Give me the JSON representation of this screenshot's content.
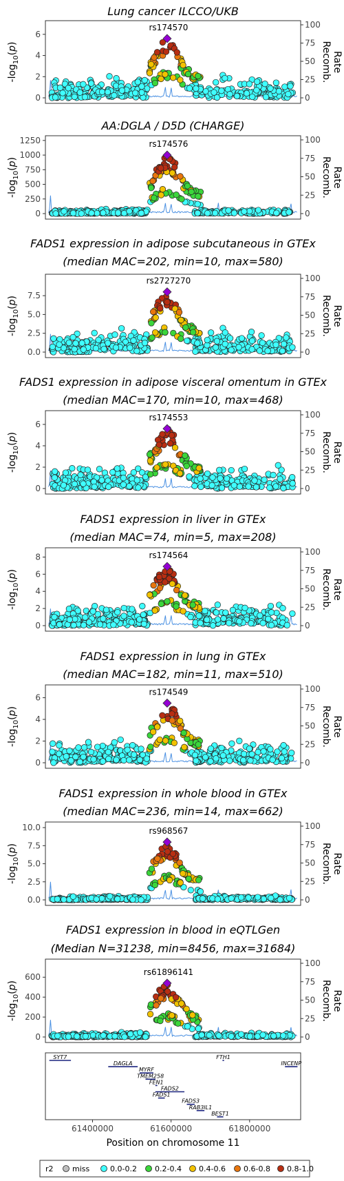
{
  "chart_data": {
    "type": "scatter",
    "xlabel": "Position on chromosome 11",
    "xlim": [
      61280000,
      61930000
    ],
    "xticks": [
      61400000,
      61600000,
      61800000
    ],
    "xtick_labels": [
      "61400000",
      "61600000",
      "61800000"
    ],
    "ylabel_left": "-log10(p)",
    "ylabel_right": "Recomb. Rate",
    "right_ticks": [
      0,
      25,
      50,
      75,
      100
    ],
    "lead_position": 61590000,
    "panels": [
      {
        "title": [
          "Lung cancer ILCCO/UKB"
        ],
        "lead": "rs174570",
        "lead_value": 5.6,
        "ymax": 6.9,
        "yticks": [
          0,
          2,
          4,
          6
        ],
        "ytick_labels": [
          "0",
          "2",
          "4",
          "6"
        ],
        "signal": "moderate"
      },
      {
        "title": [
          "AA:DGLA / D5D (CHARGE)"
        ],
        "lead": "rs174576",
        "lead_value": 1000,
        "ymax": 1260,
        "yticks": [
          0,
          250,
          500,
          750,
          1000,
          1250
        ],
        "ytick_labels": [
          "0",
          "250",
          "500",
          "750",
          "1000",
          "1250"
        ],
        "signal": "strong"
      },
      {
        "title": [
          "FADS1 expression in adipose subcutaneous in GTEx",
          "(median MAC=202, min=10, max=580)"
        ],
        "lead": "rs2727270",
        "lead_value": 8.0,
        "ymax": 9.8,
        "yticks": [
          0,
          2.5,
          5,
          7.5
        ],
        "ytick_labels": [
          "0.0",
          "2.5",
          "5.0",
          "7.5"
        ],
        "signal": "moderate"
      },
      {
        "title": [
          "FADS1 expression in adipose visceral omentum in GTEx",
          "(median MAC=170, min=10, max=468)"
        ],
        "lead": "rs174553",
        "lead_value": 5.6,
        "ymax": 6.9,
        "yticks": [
          0,
          2,
          4,
          6
        ],
        "ytick_labels": [
          "0",
          "2",
          "4",
          "6"
        ],
        "signal": "high"
      },
      {
        "title": [
          "FADS1 expression in liver in GTEx",
          "(median MAC=74, min=5, max=208)"
        ],
        "lead": "rs174564",
        "lead_value": 6.9,
        "ymax": 8.6,
        "yticks": [
          0,
          2,
          4,
          6,
          8
        ],
        "ytick_labels": [
          "0",
          "2",
          "4",
          "6",
          "8"
        ],
        "signal": "high"
      },
      {
        "title": [
          "FADS1 expression in lung in GTEx",
          "(median MAC=182, min=11, max=510)"
        ],
        "lead": "rs174549",
        "lead_value": 5.5,
        "ymax": 6.8,
        "yticks": [
          0,
          2,
          4,
          6
        ],
        "ytick_labels": [
          "0",
          "2",
          "4",
          "6"
        ],
        "signal": "high"
      },
      {
        "title": [
          "FADS1 expression in whole blood in GTEx",
          "(median MAC=236, min=14, max=662)"
        ],
        "lead": "rs968567",
        "lead_value": 8.0,
        "ymax": 10.2,
        "yticks": [
          0,
          2.5,
          5,
          7.5,
          10
        ],
        "ytick_labels": [
          "0.0",
          "2.5",
          "5.0",
          "7.5",
          "10.0"
        ],
        "signal": "strong"
      },
      {
        "title": [
          "FADS1 expression in blood in eQTLGen",
          "(Median N=31238, min=8456, max=31684)"
        ],
        "lead": "rs61896141",
        "lead_value": 540,
        "ymax": 740,
        "yticks": [
          0,
          200,
          400,
          600
        ],
        "ytick_labels": [
          "0",
          "200",
          "400",
          "600"
        ],
        "signal": "strong"
      }
    ],
    "genes": [
      {
        "name": "SYT7",
        "start": 61290000,
        "end": 61345000,
        "row": 0
      },
      {
        "name": "DAGLA",
        "start": 61440000,
        "end": 61515000,
        "row": 1
      },
      {
        "name": "FTH1",
        "start": 61731000,
        "end": 61735000,
        "row": 0
      },
      {
        "name": "INCENP",
        "start": 61890000,
        "end": 61922000,
        "row": 1
      },
      {
        "name": "MYRF",
        "start": 61520000,
        "end": 61555000,
        "row": 2
      },
      {
        "name": "TMEM258",
        "start": 61535000,
        "end": 61560000,
        "row": 3
      },
      {
        "name": "FEN1",
        "start": 61560000,
        "end": 61565000,
        "row": 4
      },
      {
        "name": "FADS2",
        "start": 61560000,
        "end": 61634000,
        "row": 5
      },
      {
        "name": "FADS1",
        "start": 61567000,
        "end": 61584000,
        "row": 6
      },
      {
        "name": "FADS3",
        "start": 61640000,
        "end": 61660000,
        "row": 7
      },
      {
        "name": "RAB3IL1",
        "start": 61665000,
        "end": 61685000,
        "row": 8
      },
      {
        "name": "BEST1",
        "start": 61717000,
        "end": 61733000,
        "row": 9
      }
    ],
    "legend": {
      "title": "r2",
      "items": [
        {
          "label": "miss",
          "color": "#BEBEBE"
        },
        {
          "label": "0.0-0.2",
          "color": "#3FFFFF"
        },
        {
          "label": "0.2-0.4",
          "color": "#3BD63B"
        },
        {
          "label": "0.4-0.6",
          "color": "#F2C200"
        },
        {
          "label": "0.6-0.8",
          "color": "#E8760E"
        },
        {
          "label": "0.8-1.0",
          "color": "#B82E12"
        }
      ]
    },
    "lead_color": "#9400D3",
    "recomb_color": "#4A90E2"
  }
}
